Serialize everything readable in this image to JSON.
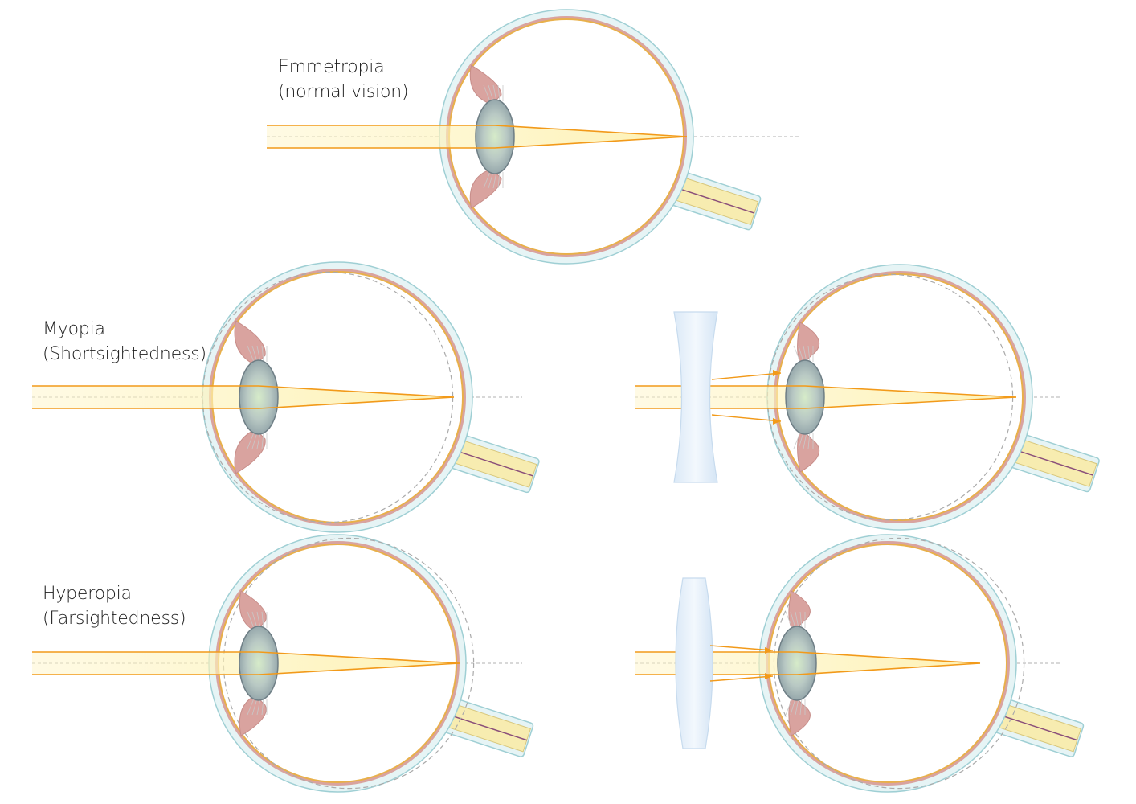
{
  "labels": {
    "emmetropia": {
      "title": "Emmetropia",
      "subtitle": "(normal vision)"
    },
    "myopia": {
      "title": "Myopia",
      "subtitle": "(Shortsightedness)"
    },
    "hyperopia": {
      "title": "Hyperopia",
      "subtitle": "(Farsightedness)"
    }
  },
  "colors": {
    "sclera": "#e6f4f5",
    "sclera_stroke": "#9fcfd4",
    "choroid": "#d9a39f",
    "retina": "#e8b04a",
    "lens_fill": "#b8c6c6",
    "lens_center": "#d5e8c9",
    "light_beam": "#fdf3b8",
    "ray": "#f29a1a",
    "axis": "#b0b0b0",
    "optic_nerve": "#f7ecb0",
    "corrective_lens": "#e8f1fb"
  },
  "panels": [
    {
      "id": "emmetropia",
      "condition": "normal vision",
      "corrective_lens": "none",
      "focus": "on retina"
    },
    {
      "id": "myopia",
      "condition": "Shortsightedness",
      "corrective_lens": "none",
      "focus": "in front of retina"
    },
    {
      "id": "myopia-corrected",
      "condition": "Shortsightedness",
      "corrective_lens": "concave",
      "focus": "on retina"
    },
    {
      "id": "hyperopia",
      "condition": "Farsightedness",
      "corrective_lens": "none",
      "focus": "behind retina"
    },
    {
      "id": "hyperopia-corrected",
      "condition": "Farsightedness",
      "corrective_lens": "convex",
      "focus": "on retina"
    }
  ]
}
